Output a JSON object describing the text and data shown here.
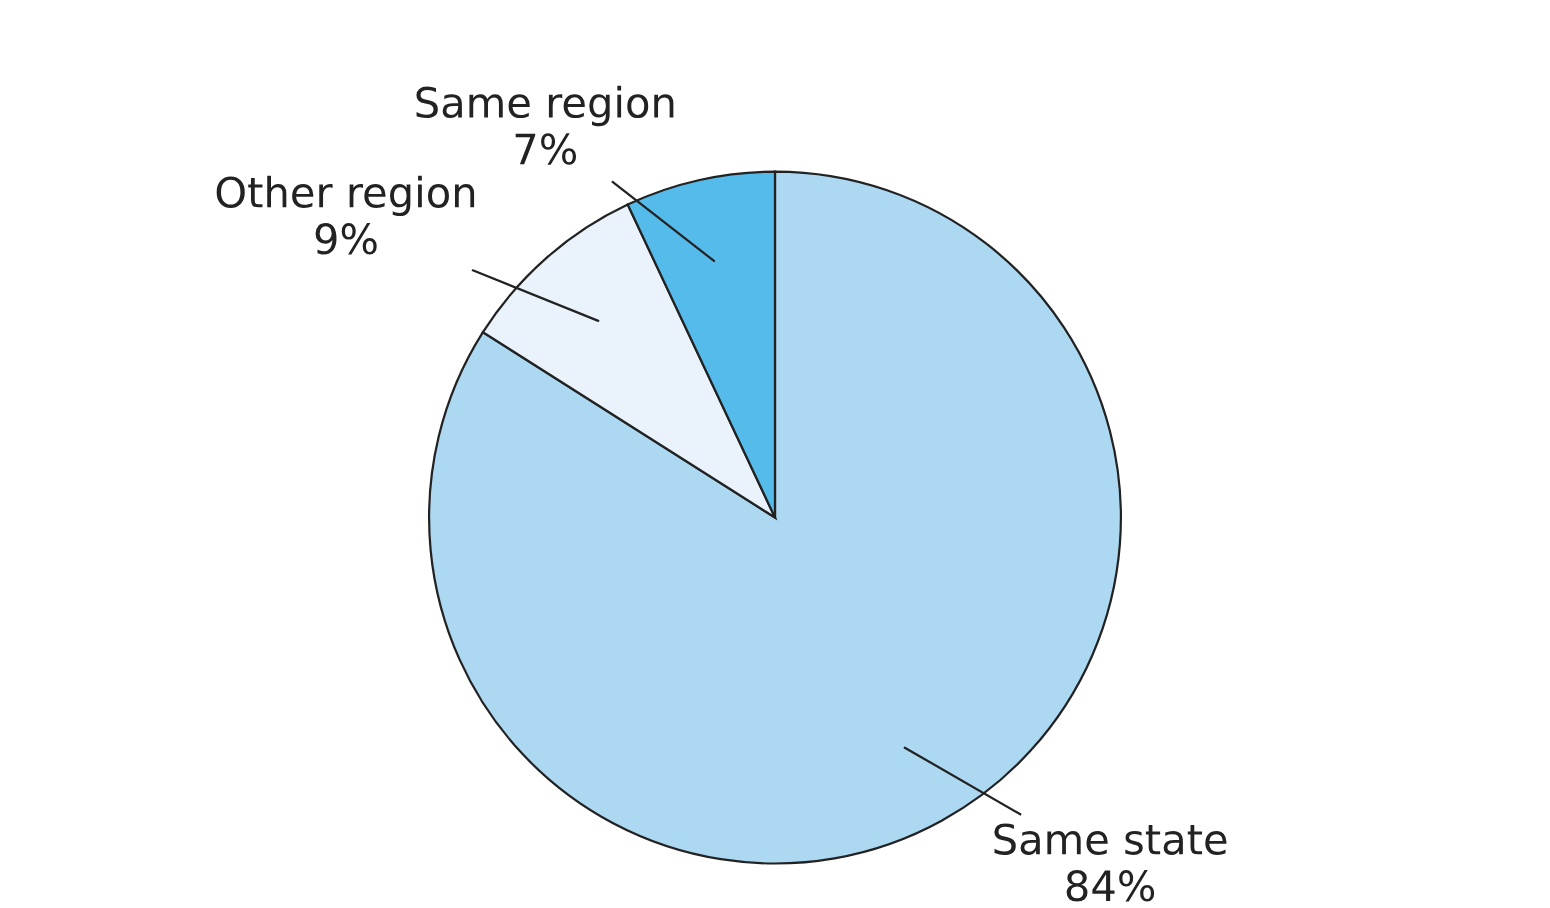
{
  "chart_data": {
    "type": "pie",
    "categories": [
      "Same state",
      "Other region",
      "Same region"
    ],
    "values": [
      84,
      9,
      7
    ],
    "colors": [
      "#add8f2",
      "#eaf3fb",
      "#55bbea"
    ],
    "value_labels": [
      "84%",
      "9%",
      "7%"
    ]
  }
}
